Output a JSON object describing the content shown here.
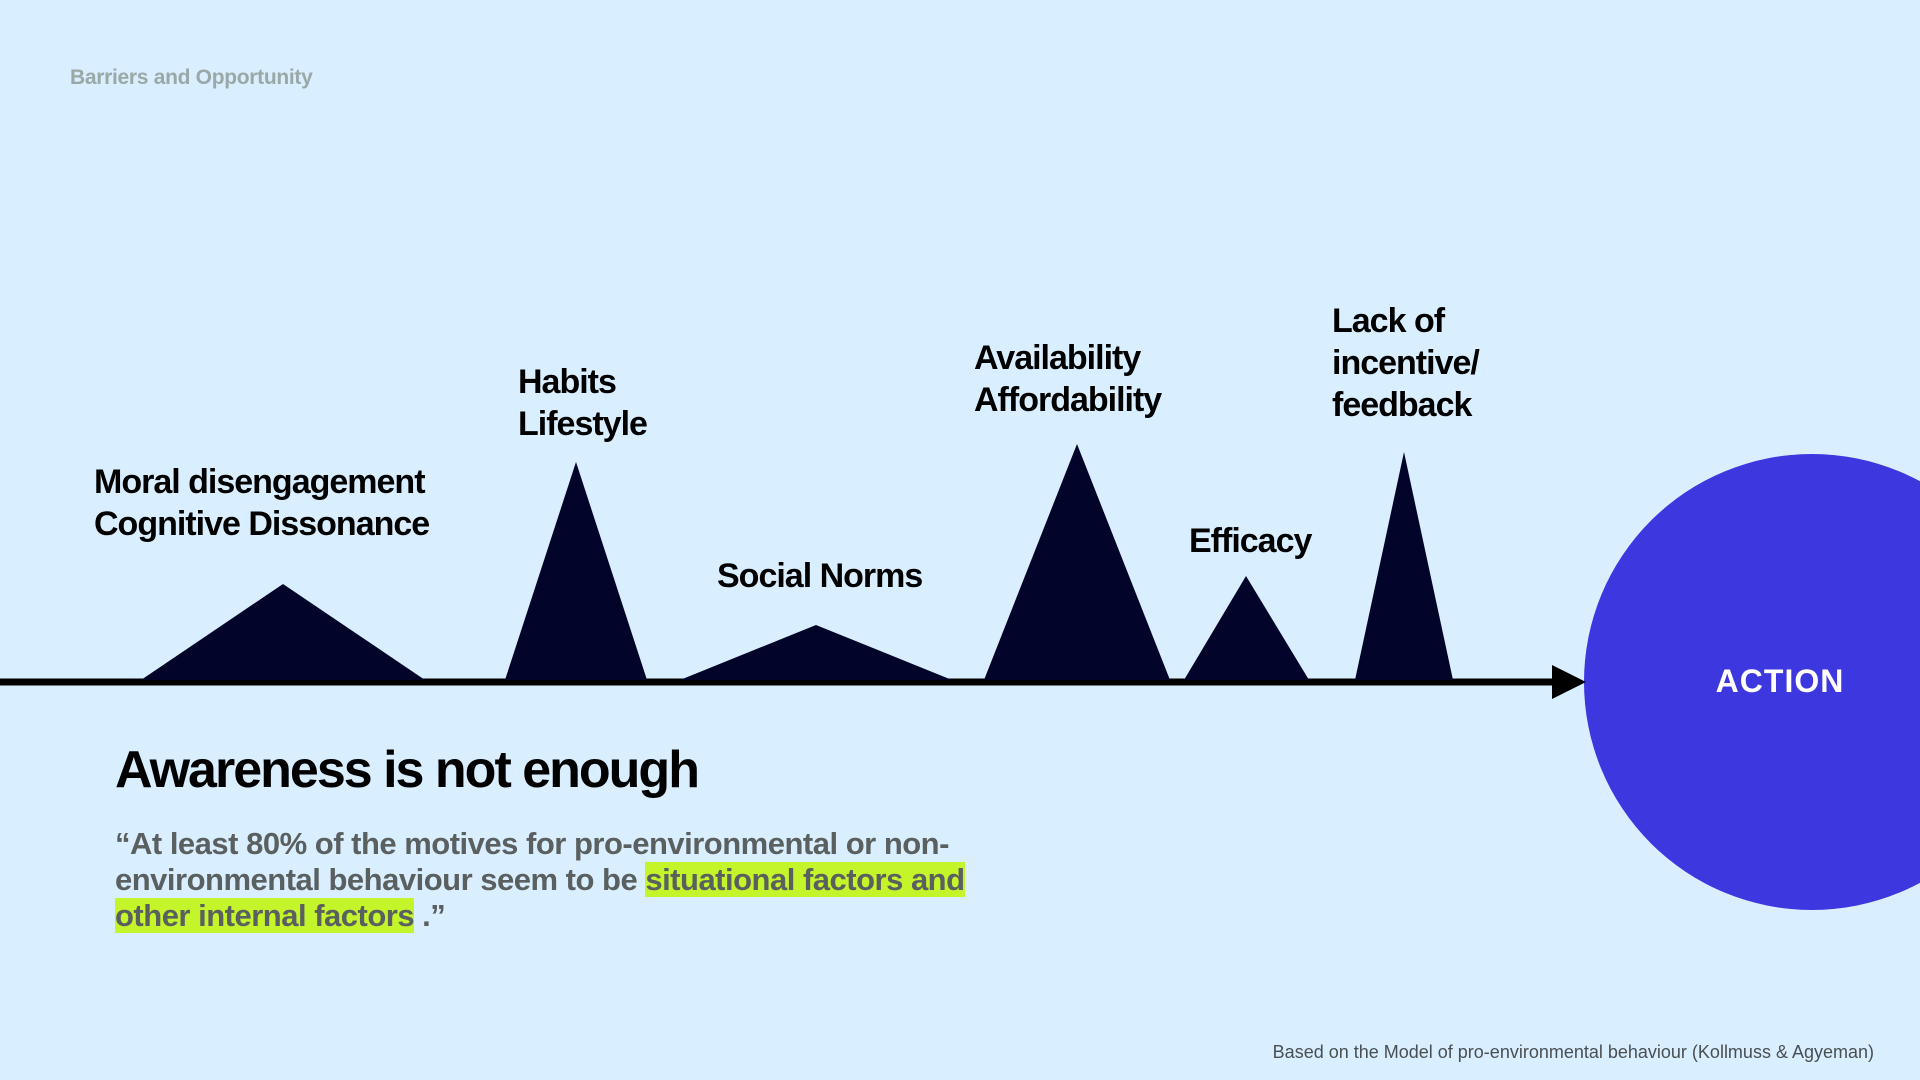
{
  "slide_label": "Barriers and Opportunity",
  "barriers": [
    {
      "lines": [
        "Moral disengagement",
        "Cognitive Dissonance"
      ]
    },
    {
      "lines": [
        "Habits",
        "Lifestyle"
      ]
    },
    {
      "lines": [
        "Social Norms"
      ]
    },
    {
      "lines": [
        "Availability",
        "Affordability"
      ]
    },
    {
      "lines": [
        "Efficacy"
      ]
    },
    {
      "lines": [
        "Lack of",
        "incentive/",
        "feedback"
      ]
    }
  ],
  "action_label": "ACTION",
  "headline": "Awareness is not enough",
  "quote": {
    "part1": "“At least 80% of the motives for pro-environmental or non-environmental behaviour seem to be ",
    "highlight": "situational factors and other internal factors",
    "part2": " .”"
  },
  "source_note": "Based on the Model of pro-environmental behaviour (Kollmuss & Agyeman)",
  "colors": {
    "background": "#d9eeff",
    "peaks": "#02042a",
    "axis": "#000000",
    "action_circle": "#3d37e0",
    "highlight": "#c4f52a"
  }
}
